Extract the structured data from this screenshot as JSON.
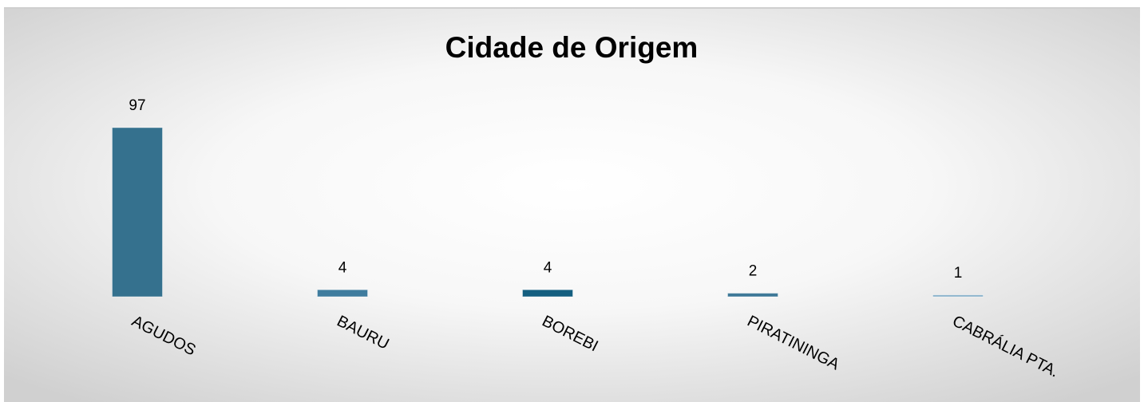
{
  "chart_data": {
    "type": "bar",
    "title": "Cidade de Origem",
    "categories": [
      "AGUDOS",
      "BAURU",
      "BOREBI",
      "PIRATININGA",
      "CABRÁLIA PTA."
    ],
    "values": [
      97,
      4,
      4,
      2,
      1
    ],
    "colors": [
      "#35718e",
      "#3f7c9e",
      "#155f80",
      "#3d7897",
      "#7fabc6"
    ]
  }
}
